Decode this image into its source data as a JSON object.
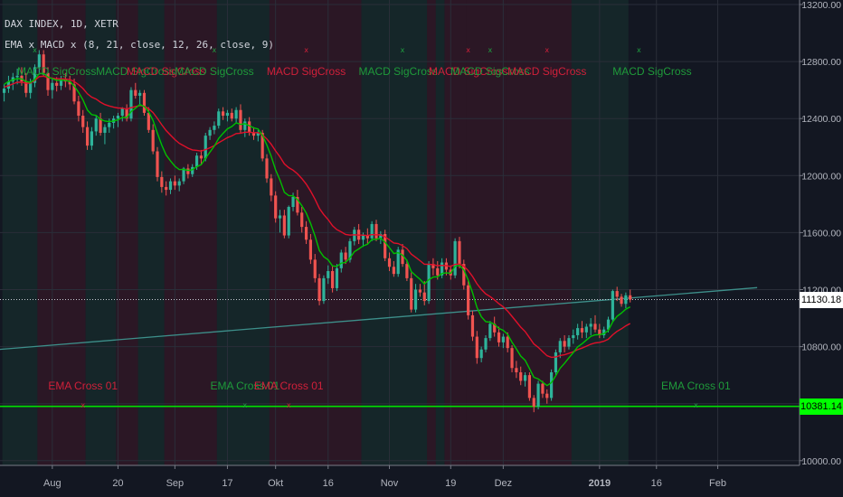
{
  "header": {
    "symbol_line": "DAX INDEX, 1D, XETR",
    "indicator_line": "EMA x MACD x (8, 21, close, 12, 26, close, 9)"
  },
  "price_tags": {
    "close": "11130.18",
    "indicator": "10381.14"
  },
  "colors": {
    "background": "#131722",
    "bull": "#26a69a",
    "up_candle": "#2eb39a",
    "down_candle": "#ef5350",
    "ema_fast": "#00c000",
    "ema_slow": "#e0102a",
    "trendline": "#3d8f8a",
    "signal_green": "#00e000",
    "grid": "#2a2e39"
  },
  "chart_data": {
    "type": "candlestick",
    "title": "DAX INDEX, 1D, XETR",
    "ylim": [
      9950,
      13250
    ],
    "y_ticks": [
      10000,
      10400,
      10800,
      11200,
      11600,
      12000,
      12400,
      12800,
      13200
    ],
    "y_tick_labels": [
      "10000.00",
      "10400.00",
      "10800.00",
      "11200.00",
      "11600.00",
      "12000.00",
      "12400.00",
      "12800.00",
      "13200.00"
    ],
    "x_tick_labels": [
      "Aug",
      "20",
      "Sep",
      "17",
      "Okt",
      "16",
      "Nov",
      "19",
      "Dez",
      "2019",
      "16",
      "Feb"
    ],
    "x_tick_index": [
      11,
      26,
      39,
      51,
      62,
      74,
      88,
      102,
      114,
      136,
      149,
      163
    ],
    "candles": [
      [
        12580,
        12640,
        12520,
        12610
      ],
      [
        12610,
        12700,
        12580,
        12660
      ],
      [
        12660,
        12720,
        12600,
        12690
      ],
      [
        12690,
        12750,
        12640,
        12700
      ],
      [
        12700,
        12760,
        12630,
        12660
      ],
      [
        12660,
        12720,
        12550,
        12580
      ],
      [
        12580,
        12680,
        12540,
        12650
      ],
      [
        12650,
        12780,
        12620,
        12760
      ],
      [
        12760,
        12880,
        12720,
        12850
      ],
      [
        12850,
        12880,
        12700,
        12720
      ],
      [
        12720,
        12760,
        12560,
        12600
      ],
      [
        12600,
        12680,
        12540,
        12650
      ],
      [
        12650,
        12690,
        12590,
        12630
      ],
      [
        12630,
        12700,
        12600,
        12680
      ],
      [
        12680,
        12720,
        12620,
        12660
      ],
      [
        12660,
        12700,
        12600,
        12640
      ],
      [
        12640,
        12680,
        12500,
        12520
      ],
      [
        12520,
        12560,
        12380,
        12420
      ],
      [
        12420,
        12460,
        12300,
        12340
      ],
      [
        12340,
        12380,
        12180,
        12210
      ],
      [
        12210,
        12340,
        12180,
        12310
      ],
      [
        12310,
        12420,
        12280,
        12400
      ],
      [
        12400,
        12440,
        12280,
        12300
      ],
      [
        12300,
        12360,
        12220,
        12340
      ],
      [
        12340,
        12400,
        12300,
        12370
      ],
      [
        12370,
        12420,
        12330,
        12400
      ],
      [
        12400,
        12440,
        12340,
        12420
      ],
      [
        12420,
        12480,
        12380,
        12470
      ],
      [
        12470,
        12500,
        12380,
        12400
      ],
      [
        12400,
        12620,
        12380,
        12600
      ],
      [
        12600,
        12650,
        12540,
        12560
      ],
      [
        12560,
        12600,
        12500,
        12580
      ],
      [
        12580,
        12600,
        12420,
        12440
      ],
      [
        12440,
        12480,
        12300,
        12320
      ],
      [
        12320,
        12360,
        12150,
        12170
      ],
      [
        12170,
        12200,
        11960,
        11990
      ],
      [
        11990,
        12030,
        11880,
        11920
      ],
      [
        11920,
        11960,
        11860,
        11900
      ],
      [
        11900,
        11980,
        11870,
        11960
      ],
      [
        11960,
        12000,
        11900,
        11930
      ],
      [
        11930,
        11980,
        11890,
        11960
      ],
      [
        11960,
        12060,
        11940,
        12050
      ],
      [
        12050,
        12080,
        11980,
        12010
      ],
      [
        12010,
        12080,
        11990,
        12060
      ],
      [
        12060,
        12160,
        12040,
        12140
      ],
      [
        12140,
        12180,
        12080,
        12120
      ],
      [
        12120,
        12300,
        12100,
        12280
      ],
      [
        12280,
        12340,
        12250,
        12320
      ],
      [
        12320,
        12380,
        12290,
        12350
      ],
      [
        12350,
        12470,
        12330,
        12450
      ],
      [
        12450,
        12480,
        12390,
        12420
      ],
      [
        12420,
        12460,
        12380,
        12440
      ],
      [
        12440,
        12470,
        12380,
        12400
      ],
      [
        12400,
        12480,
        12370,
        12460
      ],
      [
        12460,
        12500,
        12300,
        12320
      ],
      [
        12320,
        12400,
        12270,
        12380
      ],
      [
        12380,
        12410,
        12280,
        12300
      ],
      [
        12300,
        12340,
        12250,
        12280
      ],
      [
        12280,
        12320,
        12240,
        12300
      ],
      [
        12300,
        12320,
        12100,
        12120
      ],
      [
        12120,
        12150,
        11950,
        11980
      ],
      [
        11980,
        12010,
        11820,
        11860
      ],
      [
        11860,
        11890,
        11670,
        11700
      ],
      [
        11700,
        11760,
        11600,
        11720
      ],
      [
        11720,
        11760,
        11560,
        11580
      ],
      [
        11580,
        11790,
        11560,
        11780
      ],
      [
        11780,
        11880,
        11750,
        11850
      ],
      [
        11850,
        11900,
        11720,
        11740
      ],
      [
        11740,
        11780,
        11600,
        11640
      ],
      [
        11640,
        11680,
        11520,
        11550
      ],
      [
        11550,
        11590,
        11380,
        11410
      ],
      [
        11410,
        11450,
        11250,
        11280
      ],
      [
        11280,
        11310,
        11090,
        11120
      ],
      [
        11120,
        11300,
        11100,
        11280
      ],
      [
        11280,
        11370,
        11240,
        11330
      ],
      [
        11330,
        11370,
        11180,
        11210
      ],
      [
        11210,
        11380,
        11190,
        11350
      ],
      [
        11350,
        11480,
        11320,
        11460
      ],
      [
        11460,
        11500,
        11380,
        11410
      ],
      [
        11410,
        11560,
        11390,
        11540
      ],
      [
        11540,
        11640,
        11510,
        11620
      ],
      [
        11620,
        11660,
        11520,
        11550
      ],
      [
        11550,
        11600,
        11500,
        11580
      ],
      [
        11580,
        11630,
        11520,
        11560
      ],
      [
        11560,
        11680,
        11540,
        11660
      ],
      [
        11660,
        11690,
        11540,
        11560
      ],
      [
        11560,
        11610,
        11520,
        11590
      ],
      [
        11590,
        11620,
        11400,
        11420
      ],
      [
        11420,
        11460,
        11330,
        11360
      ],
      [
        11360,
        11400,
        11290,
        11310
      ],
      [
        11310,
        11500,
        11290,
        11480
      ],
      [
        11480,
        11520,
        11360,
        11380
      ],
      [
        11380,
        11410,
        11260,
        11280
      ],
      [
        11280,
        11320,
        11040,
        11060
      ],
      [
        11060,
        11240,
        11040,
        11200
      ],
      [
        11200,
        11240,
        11150,
        11180
      ],
      [
        11180,
        11260,
        11090,
        11120
      ],
      [
        11120,
        11400,
        11100,
        11380
      ],
      [
        11380,
        11420,
        11300,
        11350
      ],
      [
        11350,
        11400,
        11270,
        11300
      ],
      [
        11300,
        11420,
        11280,
        11390
      ],
      [
        11390,
        11420,
        11300,
        11340
      ],
      [
        11340,
        11370,
        11270,
        11300
      ],
      [
        11300,
        11560,
        11280,
        11540
      ],
      [
        11540,
        11570,
        11350,
        11380
      ],
      [
        11380,
        11410,
        11200,
        11230
      ],
      [
        11230,
        11260,
        10990,
        11020
      ],
      [
        11020,
        11050,
        10840,
        10870
      ],
      [
        10870,
        10910,
        10680,
        10720
      ],
      [
        10720,
        10800,
        10690,
        10780
      ],
      [
        10780,
        10880,
        10760,
        10860
      ],
      [
        10860,
        10980,
        10840,
        10960
      ],
      [
        10960,
        11010,
        10870,
        10900
      ],
      [
        10900,
        10940,
        10800,
        10830
      ],
      [
        10830,
        10890,
        10790,
        10870
      ],
      [
        10870,
        10900,
        10760,
        10790
      ],
      [
        10790,
        10810,
        10620,
        10650
      ],
      [
        10650,
        10700,
        10580,
        10620
      ],
      [
        10620,
        10660,
        10530,
        10560
      ],
      [
        10560,
        10620,
        10520,
        10600
      ],
      [
        10600,
        10620,
        10420,
        10440
      ],
      [
        10440,
        10460,
        10340,
        10380
      ],
      [
        10380,
        10560,
        10360,
        10540
      ],
      [
        10540,
        10560,
        10440,
        10470
      ],
      [
        10470,
        10500,
        10400,
        10440
      ],
      [
        10440,
        10640,
        10420,
        10620
      ],
      [
        10620,
        10780,
        10600,
        10760
      ],
      [
        10760,
        10860,
        10720,
        10840
      ],
      [
        10840,
        10880,
        10760,
        10800
      ],
      [
        10800,
        10880,
        10780,
        10860
      ],
      [
        10860,
        10920,
        10820,
        10880
      ],
      [
        10880,
        10960,
        10850,
        10930
      ],
      [
        10930,
        10980,
        10860,
        10900
      ],
      [
        10900,
        10960,
        10860,
        10940
      ],
      [
        10940,
        11000,
        10880,
        10960
      ],
      [
        10960,
        11020,
        10900,
        10920
      ],
      [
        10920,
        10960,
        10860,
        10880
      ],
      [
        10880,
        10940,
        10860,
        10920
      ],
      [
        10920,
        11010,
        10900,
        10990
      ],
      [
        10990,
        11200,
        10970,
        11190
      ],
      [
        11190,
        11220,
        11120,
        11150
      ],
      [
        11150,
        11170,
        11080,
        11100
      ],
      [
        11100,
        11180,
        11070,
        11160
      ],
      [
        11160,
        11200,
        11110,
        11130
      ]
    ],
    "ema_fast": [
      12640,
      12660,
      12672,
      12680,
      12678,
      12660,
      12654,
      12676,
      12715,
      12717,
      12691,
      12680,
      12668,
      12670,
      12667,
      12661,
      12629,
      12584,
      12531,
      12460,
      12427,
      12422,
      12394,
      12382,
      12379,
      12383,
      12391,
      12409,
      12407,
      12449,
      12473,
      12498,
      12485,
      12449,
      12387,
      12298,
      12214,
      12144,
      12103,
      12065,
      12042,
      12044,
      12036,
      12041,
      12063,
      12076,
      12121,
      12165,
      12206,
      12261,
      12296,
      12328,
      12344,
      12370,
      12359,
      12364,
      12350,
      12335,
      12327,
      12281,
      12214,
      12136,
      12040,
      11969,
      11883,
      11860,
      11858,
      11832,
      11789,
      11737,
      11664,
      11578,
      11474,
      11431,
      11409,
      11366,
      11363,
      11386,
      11391,
      11423,
      11466,
      11485,
      11507,
      11518,
      11551,
      11553,
      11561,
      11532,
      11494,
      11453,
      11459,
      11442,
      11405,
      11327,
      11298,
      11272,
      11239,
      11270,
      11288,
      11290,
      11313,
      11318,
      11314,
      11364,
      11370,
      11339,
      11268,
      11177,
      11075,
      11009,
      10975,
      10972,
      10956,
      10928,
      10914,
      10887,
      10832,
      10784,
      10734,
      10704,
      10646,
      10585,
      10573,
      10551,
      10527,
      10547,
      10595,
      10649,
      10683,
      10722,
      10758,
      10798,
      10820,
      10846,
      10872,
      10883,
      10884,
      10891,
      10913,
      10974,
      11013,
      11035,
      11063,
      11079
    ],
    "ema_slow": [
      12620,
      12631,
      12643,
      12655,
      12655,
      12648,
      12649,
      12668,
      12694,
      12697,
      12688,
      12684,
      12679,
      12679,
      12677,
      12674,
      12660,
      12638,
      12611,
      12574,
      12550,
      12537,
      12515,
      12498,
      12488,
      12480,
      12474,
      12473,
      12466,
      12477,
      12484,
      12491,
      12486,
      12470,
      12442,
      12401,
      12357,
      12316,
      12284,
      12252,
      12226,
      12210,
      12192,
      12180,
      12177,
      12172,
      12182,
      12195,
      12210,
      12231,
      12248,
      12266,
      12278,
      12295,
      12297,
      12304,
      12304,
      12301,
      12301,
      12285,
      12257,
      12220,
      12173,
      12132,
      12082,
      12056,
      12038,
      12012,
      11979,
      11940,
      11891,
      11835,
      11770,
      11727,
      11691,
      11648,
      11621,
      11605,
      11587,
      11582,
      11585,
      11582,
      11582,
      11579,
      11586,
      11584,
      11585,
      11570,
      11549,
      11527,
      11523,
      11509,
      11488,
      11449,
      11426,
      11403,
      11378,
      11378,
      11375,
      11368,
      11370,
      11368,
      11362,
      11378,
      11379,
      11365,
      11334,
      11292,
      11241,
      11201,
      11170,
      11151,
      11128,
      11101,
      11079,
      11050,
      11013,
      10975,
      10937,
      10906,
      10863,
      10819,
      10795,
      10765,
      10736,
      10725,
      10727,
      10738,
      10743,
      10753,
      10764,
      10779,
      10790,
      10803,
      10817,
      10826,
      10830,
      10838,
      10852,
      10883,
      10907,
      10925,
      10946,
      10962
    ],
    "trendline": {
      "start": [
        -8,
        10763
      ],
      "end": [
        172,
        11214
      ]
    },
    "indicator_level": 10381.14,
    "current_price": 11130.18,
    "shading": [
      [
        "bull",
        0,
        8
      ],
      [
        "bear",
        8,
        19
      ],
      [
        "bull",
        19,
        26
      ],
      [
        "bear",
        26,
        31
      ],
      [
        "bull",
        31,
        37
      ],
      [
        "bear",
        37,
        49
      ],
      [
        "bull",
        49,
        61
      ],
      [
        "bear",
        61,
        82
      ],
      [
        "bull",
        82,
        97
      ],
      [
        "bear",
        97,
        99
      ],
      [
        "bull",
        99,
        101
      ],
      [
        "bear",
        101,
        106
      ],
      [
        "bear",
        106,
        115
      ],
      [
        "bear",
        115,
        130
      ],
      [
        "bull",
        130,
        143
      ],
      [
        "none",
        143,
        172
      ]
    ],
    "annotations": [
      {
        "text": "MACD SigCross",
        "bar": 12,
        "series": "bull",
        "row": "top"
      },
      {
        "text": "MACD SigCross",
        "bar": 30,
        "series": "bull",
        "row": "top"
      },
      {
        "text": "MACD SigCross",
        "bar": 37,
        "series": "bear",
        "row": "top"
      },
      {
        "text": "MACD SigCross",
        "bar": 48,
        "series": "bull",
        "row": "top"
      },
      {
        "text": "MACD SigCross",
        "bar": 69,
        "series": "bear",
        "row": "top"
      },
      {
        "text": "MACD SigCross",
        "bar": 90,
        "series": "bull",
        "row": "top"
      },
      {
        "text": "MACD SigCross",
        "bar": 106,
        "series": "bear",
        "row": "top"
      },
      {
        "text": "MACD SigCross",
        "bar": 111,
        "series": "bull",
        "row": "top"
      },
      {
        "text": "MACD SigCross",
        "bar": 124,
        "series": "bear",
        "row": "top"
      },
      {
        "text": "MACD SigCross",
        "bar": 148,
        "series": "bull",
        "row": "top"
      },
      {
        "text": "EMA Cross 01",
        "bar": 18,
        "series": "bear",
        "row": "bottom"
      },
      {
        "text": "EMA Cross 01",
        "bar": 55,
        "series": "bull",
        "row": "bottom"
      },
      {
        "text": "EMA Cross 01",
        "bar": 65,
        "series": "bear",
        "row": "bottom"
      },
      {
        "text": "EMA Cross 01",
        "bar": 158,
        "series": "bull",
        "row": "bottom"
      }
    ],
    "markers": [
      {
        "bar": 7,
        "series": "bull",
        "row": "top"
      },
      {
        "bar": 48,
        "series": "bull",
        "row": "top"
      },
      {
        "bar": 69,
        "series": "bear",
        "row": "top"
      },
      {
        "bar": 91,
        "series": "bull",
        "row": "top"
      },
      {
        "bar": 106,
        "series": "bear",
        "row": "top"
      },
      {
        "bar": 111,
        "series": "bull",
        "row": "top"
      },
      {
        "bar": 124,
        "series": "bear",
        "row": "top"
      },
      {
        "bar": 145,
        "series": "bull",
        "row": "top"
      },
      {
        "bar": 18,
        "series": "bear",
        "row": "bottom"
      },
      {
        "bar": 55,
        "series": "bull",
        "row": "bottom"
      },
      {
        "bar": 65,
        "series": "bear",
        "row": "bottom"
      },
      {
        "bar": 158,
        "series": "bull",
        "row": "bottom"
      }
    ],
    "marker_text": "x"
  }
}
